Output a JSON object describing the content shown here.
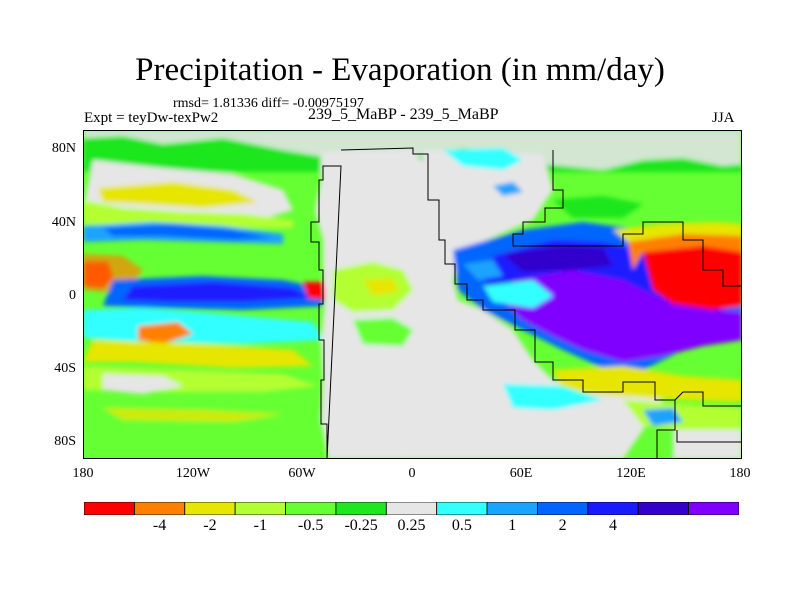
{
  "title": "Precipitation - Evaporation (in mm/day)",
  "stats_line": "rmsd= 1.81336 diff= -0.00975197",
  "experiment_label": "Expt = teyDw-texPw2",
  "cases_label": "239_5_MaBP - 239_5_MaBP",
  "season_label": "JJA",
  "latitude_labels": [
    "80N",
    "40N",
    "0",
    "40S",
    "80S"
  ],
  "longitude_labels": [
    "180",
    "120W",
    "60W",
    "0",
    "60E",
    "120E",
    "180"
  ],
  "colorbar": {
    "colors": [
      "#ff0000",
      "#ff8000",
      "#e6e600",
      "#b3ff33",
      "#66ff33",
      "#1fe61f",
      "#e6e6e6",
      "#33ffff",
      "#1aa3ff",
      "#0066ff",
      "#1a1aff",
      "#3300cc",
      "#8000ff"
    ],
    "labels": [
      "-4",
      "-2",
      "-1",
      "-0.5",
      "-0.25",
      "0.25",
      "0.5",
      "1",
      "2",
      "4"
    ]
  }
}
